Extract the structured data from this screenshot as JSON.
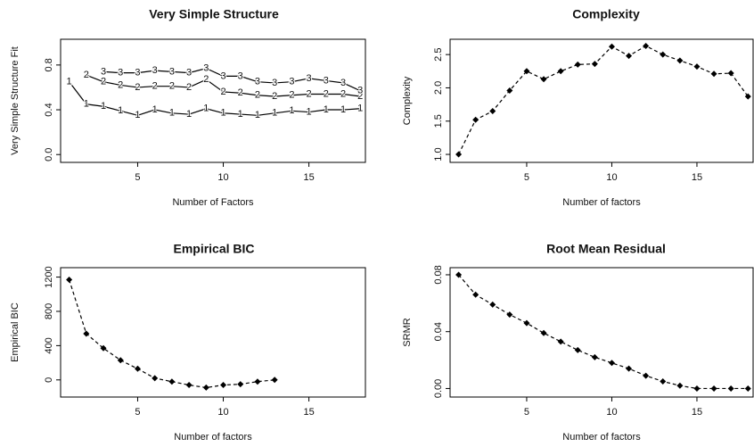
{
  "chart_data": [
    {
      "type": "line",
      "title": "Very Simple Structure",
      "x_label": "Number of Factors",
      "y_label": "Very Simple Structure Fit",
      "x": [
        1,
        2,
        3,
        4,
        5,
        6,
        7,
        8,
        9,
        10,
        11,
        12,
        13,
        14,
        15,
        16,
        17,
        18
      ],
      "series": [
        {
          "name": "1",
          "color": "#000000",
          "marker": "name",
          "linestyle": "solid",
          "values": [
            0.65,
            0.45,
            0.43,
            0.39,
            0.35,
            0.4,
            0.37,
            0.36,
            0.41,
            0.37,
            0.36,
            0.35,
            0.37,
            0.39,
            0.38,
            0.4,
            0.4,
            0.41
          ]
        },
        {
          "name": "2",
          "color": "#000000",
          "marker": "name",
          "linestyle": "solid",
          "values": [
            null,
            0.71,
            0.65,
            0.62,
            0.6,
            0.61,
            0.61,
            0.6,
            0.67,
            0.56,
            0.55,
            0.53,
            0.52,
            0.53,
            0.54,
            0.54,
            0.54,
            0.52
          ]
        },
        {
          "name": "3",
          "color": "#000000",
          "marker": "name",
          "linestyle": "solid",
          "values": [
            null,
            null,
            0.74,
            0.73,
            0.73,
            0.75,
            0.74,
            0.73,
            0.77,
            0.7,
            0.7,
            0.65,
            0.64,
            0.65,
            0.68,
            0.66,
            0.64,
            0.57
          ]
        }
      ],
      "xlim": [
        0.5,
        18.3
      ],
      "xticks": [
        5,
        10,
        15
      ],
      "ylim": [
        -0.07,
        1.03
      ],
      "yticks": [
        {
          "value": 0,
          "label": "0.0"
        },
        0.4,
        0.8
      ]
    },
    {
      "type": "line",
      "title": "Complexity",
      "x_label": "Number of factors",
      "y_label": "Complexity",
      "x": [
        1,
        2,
        3,
        4,
        5,
        6,
        7,
        8,
        9,
        10,
        11,
        12,
        13,
        14,
        15,
        16,
        17,
        18
      ],
      "series": [
        {
          "color": "#000000",
          "marker": "diamond",
          "linestyle": "dashed",
          "values": [
            1.0,
            1.52,
            1.65,
            1.96,
            2.25,
            2.13,
            2.25,
            2.35,
            2.36,
            2.62,
            2.48,
            2.63,
            2.5,
            2.41,
            2.32,
            2.21,
            2.22,
            1.87
          ]
        }
      ],
      "xlim": [
        0.5,
        18.3
      ],
      "xticks": [
        5,
        10,
        15
      ],
      "ylim": [
        0.88,
        2.73
      ],
      "yticks": [
        {
          "value": 1,
          "label": "1.0"
        },
        1.5,
        {
          "value": 2,
          "label": "2.0"
        },
        2.5
      ]
    },
    {
      "type": "line",
      "title": "Empirical BIC",
      "x_label": "Number of factors",
      "y_label": "Empirical BIC",
      "x": [
        1,
        2,
        3,
        4,
        5,
        6,
        7,
        8,
        9,
        10,
        11,
        12,
        13
      ],
      "series": [
        {
          "color": "#000000",
          "marker": "diamond",
          "linestyle": "dashed",
          "values": [
            1170,
            540,
            370,
            230,
            130,
            20,
            -20,
            -60,
            -90,
            -60,
            -50,
            -20,
            0
          ]
        }
      ],
      "xlim": [
        0.5,
        18.3
      ],
      "xticks": [
        5,
        10,
        15
      ],
      "ylim": [
        -200,
        1310
      ],
      "yticks": [
        0,
        400,
        800,
        1200
      ]
    },
    {
      "type": "line",
      "title": "Root Mean Residual",
      "x_label": "Number of factors",
      "y_label": "SRMR",
      "x": [
        1,
        2,
        3,
        4,
        5,
        6,
        7,
        8,
        9,
        10,
        11,
        12,
        13,
        14,
        15,
        16,
        17,
        18
      ],
      "series": [
        {
          "color": "#000000",
          "marker": "diamond",
          "linestyle": "dashed",
          "values": [
            0.08,
            0.066,
            0.059,
            0.052,
            0.046,
            0.039,
            0.033,
            0.027,
            0.022,
            0.018,
            0.014,
            0.009,
            0.005,
            0.002,
            0.0,
            0.0,
            0.0,
            0.0
          ]
        }
      ],
      "xlim": [
        0.5,
        18.3
      ],
      "xticks": [
        5,
        10,
        15
      ],
      "ylim": [
        -0.006,
        0.085
      ],
      "yticks": [
        {
          "value": 0,
          "label": "0.00"
        },
        {
          "value": 0.04,
          "label": "0.04"
        },
        {
          "value": 0.08,
          "label": "0.08"
        }
      ]
    }
  ]
}
